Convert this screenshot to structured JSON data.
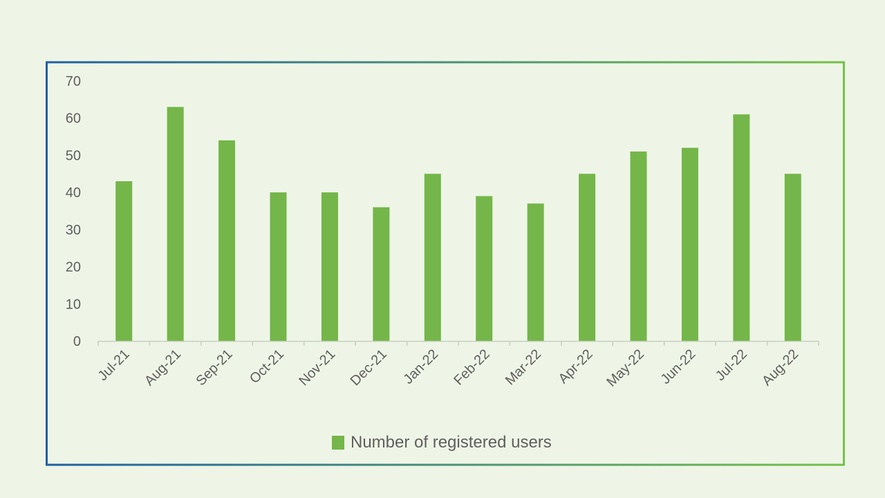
{
  "chart_data": {
    "type": "bar",
    "categories": [
      "Jul-21",
      "Aug-21",
      "Sep-21",
      "Oct-21",
      "Nov-21",
      "Dec-21",
      "Jan-22",
      "Feb-22",
      "Mar-22",
      "Apr-22",
      "May-22",
      "Jun-22",
      "Jul-22",
      "Aug-22"
    ],
    "series": [
      {
        "name": "Number of registered users",
        "values": [
          43,
          63,
          54,
          40,
          40,
          36,
          45,
          39,
          37,
          45,
          51,
          52,
          61,
          45
        ]
      }
    ],
    "yticks": [
      "0",
      "10",
      "20",
      "30",
      "40",
      "50",
      "60",
      "70"
    ],
    "ylim": [
      0,
      70
    ],
    "grid": false,
    "legend": "bottom-center",
    "colors": {
      "bar": "#74b649",
      "background": "#eef5e6",
      "frame_start": "#1f5fa3",
      "frame_end": "#74c14a",
      "axis": "#c8cfc2",
      "text": "#5f5f5f"
    }
  }
}
